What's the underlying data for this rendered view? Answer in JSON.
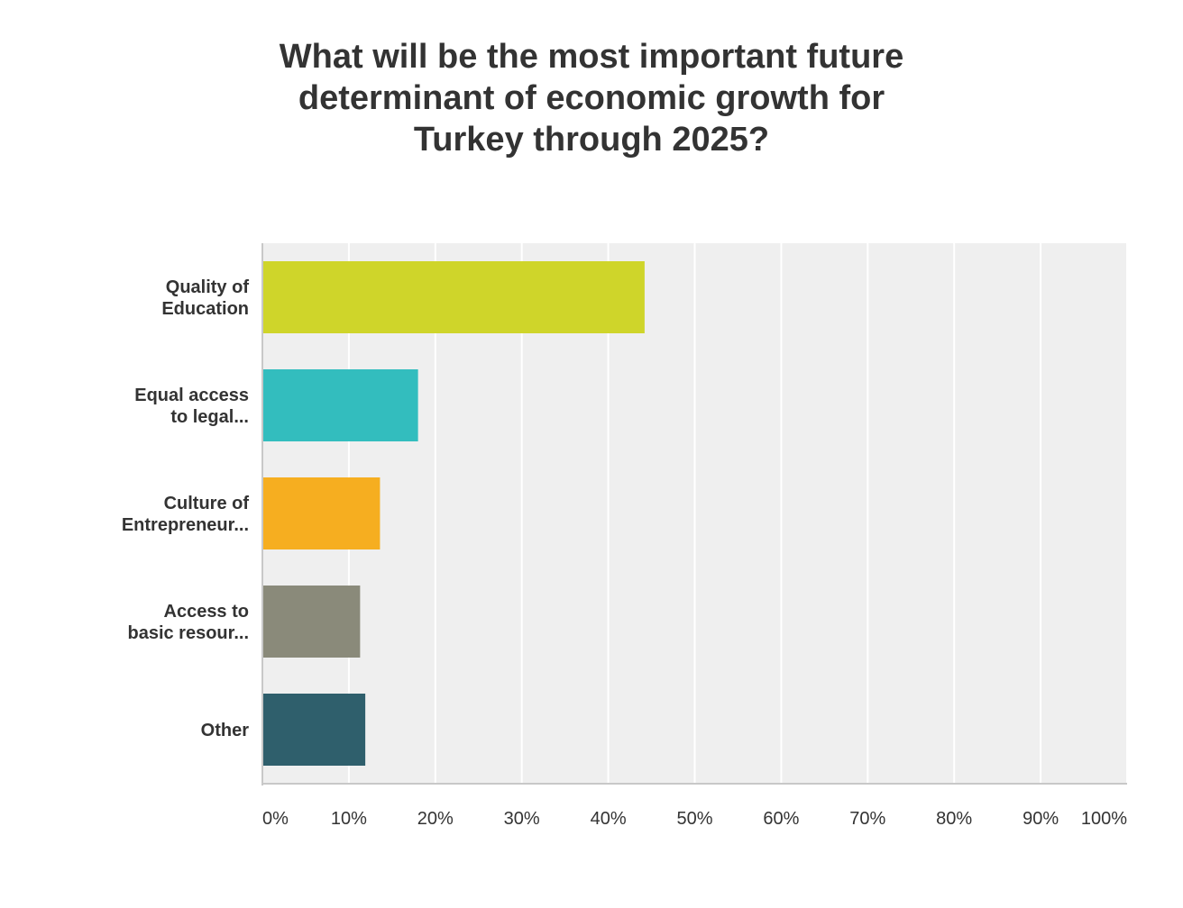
{
  "chart_data": {
    "type": "bar",
    "orientation": "horizontal",
    "title_lines": [
      "What will be the most important future",
      "determinant of economic growth for",
      "Turkey through 2025?"
    ],
    "categories": [
      [
        "Quality of",
        "Education"
      ],
      [
        "Equal access",
        "to legal..."
      ],
      [
        "Culture of",
        "Entrepreneur..."
      ],
      [
        "Access to",
        "basic resour..."
      ],
      [
        "Other"
      ]
    ],
    "values": [
      44.2,
      18.0,
      13.6,
      11.3,
      11.9
    ],
    "colors": [
      "#cfd52a",
      "#33bdbe",
      "#f6ae20",
      "#8a8a7a",
      "#2f5f6c"
    ],
    "xlim": [
      0,
      100
    ],
    "ticks": [
      "0%",
      "10%",
      "20%",
      "30%",
      "40%",
      "50%",
      "60%",
      "70%",
      "80%",
      "90%",
      "100%"
    ],
    "grid": true,
    "plot_background": "#efefef",
    "grid_color": "#ffffff",
    "axis_color": "#c8c8c8",
    "xlabel": "",
    "ylabel": ""
  }
}
